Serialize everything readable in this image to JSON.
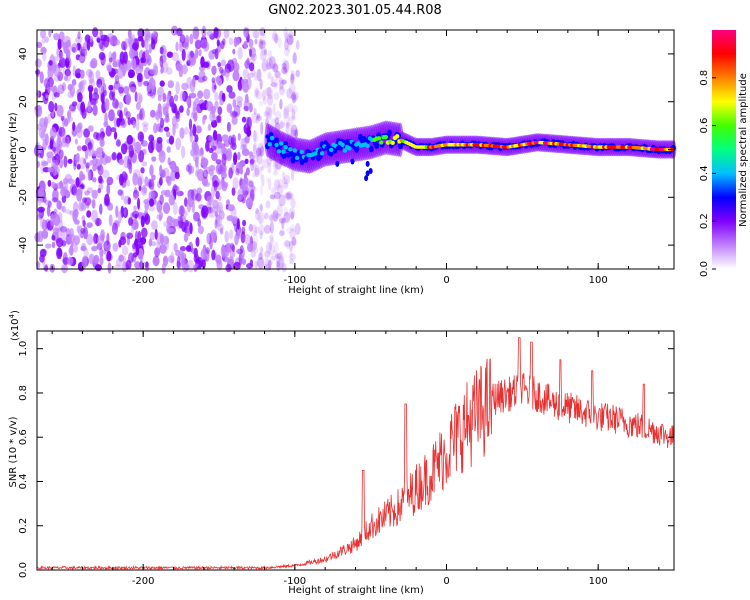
{
  "title": "GN02.2023.301.05.44.R08",
  "chart_data": [
    {
      "type": "heatmap",
      "xlabel": "Height of straight line (km)",
      "ylabel": "Frequency (Hz)",
      "xlim": [
        -270,
        150
      ],
      "ylim": [
        -50,
        50
      ],
      "x_ticks": [
        -200,
        -100,
        0,
        100
      ],
      "y_ticks": [
        -40,
        -20,
        0,
        20,
        40
      ],
      "colorbar": {
        "label": "Normalized spectral amplitude",
        "range": [
          0,
          1
        ],
        "ticks": [
          "0.0",
          "0.2",
          "0.4",
          "0.6",
          "0.8"
        ],
        "colors": [
          "#ffffff",
          "#c080ff",
          "#8000ff",
          "#0000ff",
          "#00c0ff",
          "#00ff80",
          "#40ff00",
          "#ffff00",
          "#ff8000",
          "#ff0000",
          "#ff0080"
        ]
      },
      "noise_region_x": [
        -270,
        -110
      ],
      "signal_track": [
        {
          "x": -118,
          "y": 4,
          "amp": 0.35
        },
        {
          "x": -110,
          "y": 1,
          "amp": 0.45
        },
        {
          "x": -100,
          "y": -2,
          "amp": 0.4
        },
        {
          "x": -90,
          "y": -3,
          "amp": 0.45
        },
        {
          "x": -80,
          "y": 0,
          "amp": 0.4
        },
        {
          "x": -70,
          "y": 1,
          "amp": 0.4
        },
        {
          "x": -60,
          "y": 2,
          "amp": 0.45
        },
        {
          "x": -50,
          "y": 3,
          "amp": 0.5
        },
        {
          "x": -40,
          "y": 5,
          "amp": 0.7
        },
        {
          "x": -30,
          "y": 4,
          "amp": 0.75
        },
        {
          "x": -20,
          "y": 1,
          "amp": 0.7
        },
        {
          "x": -10,
          "y": 1,
          "amp": 0.9
        },
        {
          "x": 0,
          "y": 2,
          "amp": 0.85
        },
        {
          "x": 20,
          "y": 2,
          "amp": 0.95
        },
        {
          "x": 40,
          "y": 1,
          "amp": 0.9
        },
        {
          "x": 60,
          "y": 3,
          "amp": 0.95
        },
        {
          "x": 80,
          "y": 2,
          "amp": 0.9
        },
        {
          "x": 100,
          "y": 1,
          "amp": 0.9
        },
        {
          "x": 120,
          "y": 1,
          "amp": 0.95
        },
        {
          "x": 140,
          "y": 0,
          "amp": 0.95
        },
        {
          "x": 150,
          "y": 0,
          "amp": 0.95
        }
      ]
    },
    {
      "type": "line",
      "xlabel": "Height of straight line (km)",
      "ylabel": "SNR (10 * v/v)",
      "y_multiplier": "(x10",
      "y_multiplier_exp": "4",
      "y_multiplier_close": ")",
      "xlim": [
        -270,
        150
      ],
      "ylim": [
        0,
        1.08
      ],
      "x_ticks": [
        -200,
        -100,
        0,
        100
      ],
      "y_ticks": [
        "0.0",
        "0.2",
        "0.4",
        "0.6",
        "0.8",
        "1.0"
      ],
      "color": "#e83030",
      "envelope": {
        "x": [
          -270,
          -120,
          -100,
          -80,
          -60,
          -50,
          -40,
          -30,
          -20,
          -10,
          0,
          10,
          20,
          30,
          40,
          50,
          60,
          70,
          80,
          90,
          100,
          110,
          120,
          130,
          140,
          150
        ],
        "y": [
          0.01,
          0.01,
          0.02,
          0.05,
          0.12,
          0.2,
          0.25,
          0.3,
          0.38,
          0.45,
          0.55,
          0.65,
          0.72,
          0.78,
          0.8,
          0.82,
          0.8,
          0.76,
          0.74,
          0.72,
          0.7,
          0.69,
          0.67,
          0.65,
          0.63,
          0.6
        ]
      },
      "peaks": [
        {
          "x": -55,
          "y": 0.45
        },
        {
          "x": -27,
          "y": 0.75
        },
        {
          "x": 48,
          "y": 1.05
        },
        {
          "x": 56,
          "y": 1.03
        },
        {
          "x": 75,
          "y": 0.95
        },
        {
          "x": 96,
          "y": 0.9
        },
        {
          "x": 130,
          "y": 0.84
        }
      ]
    }
  ]
}
